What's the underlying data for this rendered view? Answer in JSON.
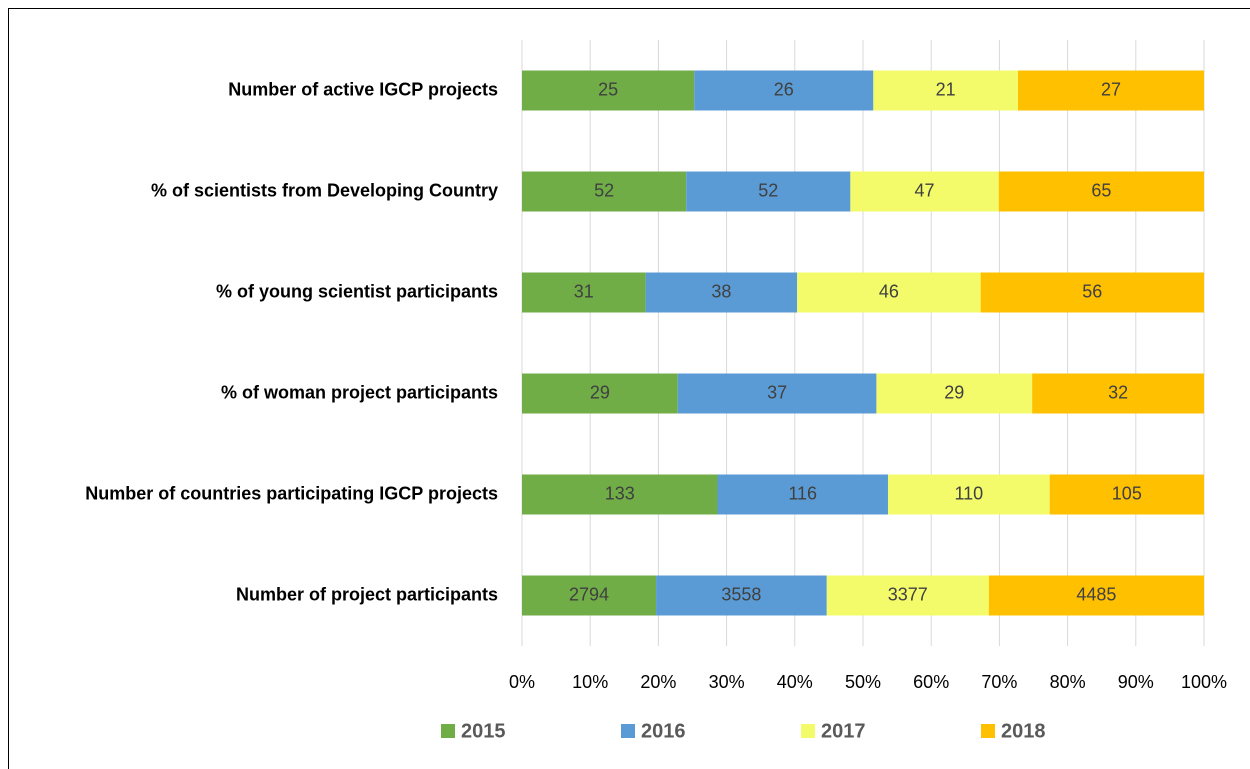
{
  "chart_data": {
    "type": "bar",
    "orientation": "horizontal",
    "stacking": "percent",
    "categories": [
      "Number of active IGCP projects",
      "% of scientists from Developing Country",
      "% of young scientist participants",
      "% of woman project participants",
      "Number of countries participating IGCP projects",
      "Number of project participants"
    ],
    "series": [
      {
        "name": "2015",
        "color": "#70ad47",
        "values": [
          25,
          52,
          31,
          29,
          133,
          2794
        ]
      },
      {
        "name": "2016",
        "color": "#5b9bd5",
        "values": [
          26,
          52,
          38,
          37,
          116,
          3558
        ]
      },
      {
        "name": "2017",
        "color": "#f4fb6a",
        "values": [
          21,
          47,
          46,
          29,
          110,
          3377
        ]
      },
      {
        "name": "2018",
        "color": "#ffc000",
        "values": [
          27,
          65,
          56,
          32,
          105,
          4485
        ]
      }
    ],
    "xlim": [
      0,
      100
    ],
    "xticks": [
      {
        "value": 0,
        "label": "0%"
      },
      {
        "value": 10,
        "label": "10%"
      },
      {
        "value": 20,
        "label": "20%"
      },
      {
        "value": 30,
        "label": "30%"
      },
      {
        "value": 40,
        "label": "40%"
      },
      {
        "value": 50,
        "label": "50%"
      },
      {
        "value": 60,
        "label": "60%"
      },
      {
        "value": 70,
        "label": "70%"
      },
      {
        "value": 80,
        "label": "80%"
      },
      {
        "value": 90,
        "label": "90%"
      },
      {
        "value": 100,
        "label": "100%"
      }
    ],
    "grid": true,
    "legend": "bottom"
  }
}
